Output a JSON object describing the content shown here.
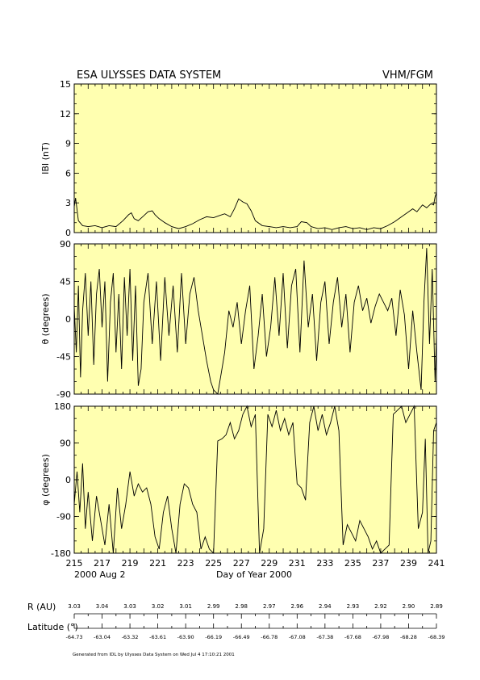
{
  "header": {
    "title": "ESA ULYSSES DATA SYSTEM",
    "instrument": "VHM/FGM"
  },
  "chart_data": {
    "type": "line",
    "x": {
      "label": "Day of Year 2000",
      "range": [
        215,
        241
      ],
      "tick_labels": [
        "215",
        "217",
        "219",
        "221",
        "223",
        "225",
        "227",
        "229",
        "231",
        "233",
        "235",
        "237",
        "239",
        "241"
      ],
      "start_date": "2000 Aug  2"
    },
    "panels": [
      {
        "name": "B",
        "ylabel": "IBI (nT)",
        "ylim": [
          0,
          15
        ],
        "ytick_labels": [
          "0",
          "3",
          "6",
          "9",
          "12",
          "15"
        ],
        "points": [
          [
            215.0,
            2.6
          ],
          [
            215.1,
            3.5
          ],
          [
            215.3,
            1.2
          ],
          [
            215.6,
            0.7
          ],
          [
            216.0,
            0.6
          ],
          [
            216.5,
            0.7
          ],
          [
            217.0,
            0.5
          ],
          [
            217.5,
            0.7
          ],
          [
            218.0,
            0.6
          ],
          [
            218.5,
            1.2
          ],
          [
            218.9,
            1.8
          ],
          [
            219.1,
            2.0
          ],
          [
            219.3,
            1.4
          ],
          [
            219.6,
            1.2
          ],
          [
            220.0,
            1.7
          ],
          [
            220.3,
            2.1
          ],
          [
            220.6,
            2.2
          ],
          [
            220.8,
            1.8
          ],
          [
            221.1,
            1.4
          ],
          [
            221.5,
            1.0
          ],
          [
            222.0,
            0.6
          ],
          [
            222.5,
            0.4
          ],
          [
            223.0,
            0.6
          ],
          [
            223.5,
            0.9
          ],
          [
            224.0,
            1.3
          ],
          [
            224.5,
            1.6
          ],
          [
            225.0,
            1.5
          ],
          [
            225.4,
            1.7
          ],
          [
            225.8,
            1.9
          ],
          [
            226.2,
            1.6
          ],
          [
            226.5,
            2.4
          ],
          [
            226.8,
            3.4
          ],
          [
            227.1,
            3.1
          ],
          [
            227.4,
            2.9
          ],
          [
            227.7,
            2.2
          ],
          [
            228.0,
            1.2
          ],
          [
            228.5,
            0.7
          ],
          [
            229.0,
            0.6
          ],
          [
            229.5,
            0.5
          ],
          [
            230.0,
            0.6
          ],
          [
            230.5,
            0.5
          ],
          [
            231.0,
            0.6
          ],
          [
            231.3,
            1.1
          ],
          [
            231.7,
            1.0
          ],
          [
            232.0,
            0.6
          ],
          [
            232.5,
            0.4
          ],
          [
            233.0,
            0.5
          ],
          [
            233.5,
            0.3
          ],
          [
            234.0,
            0.5
          ],
          [
            234.5,
            0.6
          ],
          [
            235.0,
            0.4
          ],
          [
            235.5,
            0.5
          ],
          [
            236.0,
            0.3
          ],
          [
            236.5,
            0.5
          ],
          [
            237.0,
            0.4
          ],
          [
            237.5,
            0.7
          ],
          [
            238.0,
            1.1
          ],
          [
            238.5,
            1.6
          ],
          [
            239.0,
            2.1
          ],
          [
            239.3,
            2.4
          ],
          [
            239.6,
            2.1
          ],
          [
            240.0,
            2.8
          ],
          [
            240.3,
            2.5
          ],
          [
            240.6,
            2.9
          ],
          [
            240.8,
            2.8
          ],
          [
            240.9,
            3.6
          ],
          [
            241.0,
            4.0
          ]
        ]
      },
      {
        "name": "theta",
        "ylabel": "θ (degrees)",
        "ylim": [
          -90,
          90
        ],
        "ytick_labels": [
          "-90",
          "-45",
          "0",
          "45",
          "90"
        ],
        "points": [
          [
            215.0,
            15
          ],
          [
            215.15,
            -40
          ],
          [
            215.3,
            40
          ],
          [
            215.45,
            -70
          ],
          [
            215.6,
            10
          ],
          [
            215.8,
            55
          ],
          [
            216.0,
            -20
          ],
          [
            216.2,
            45
          ],
          [
            216.4,
            -55
          ],
          [
            216.6,
            30
          ],
          [
            216.8,
            60
          ],
          [
            217.0,
            -10
          ],
          [
            217.2,
            45
          ],
          [
            217.4,
            -75
          ],
          [
            217.6,
            20
          ],
          [
            217.8,
            55
          ],
          [
            218.0,
            -40
          ],
          [
            218.2,
            30
          ],
          [
            218.4,
            -60
          ],
          [
            218.6,
            50
          ],
          [
            218.8,
            -20
          ],
          [
            219.0,
            60
          ],
          [
            219.2,
            -50
          ],
          [
            219.4,
            40
          ],
          [
            219.6,
            -80
          ],
          [
            219.8,
            -60
          ],
          [
            220.0,
            20
          ],
          [
            220.3,
            55
          ],
          [
            220.6,
            -30
          ],
          [
            220.9,
            45
          ],
          [
            221.2,
            -50
          ],
          [
            221.5,
            50
          ],
          [
            221.8,
            -20
          ],
          [
            222.1,
            40
          ],
          [
            222.4,
            -40
          ],
          [
            222.7,
            55
          ],
          [
            223.0,
            -30
          ],
          [
            223.3,
            30
          ],
          [
            223.6,
            50
          ],
          [
            223.9,
            10
          ],
          [
            224.2,
            -20
          ],
          [
            224.5,
            -50
          ],
          [
            224.8,
            -75
          ],
          [
            225.0,
            -85
          ],
          [
            225.3,
            -90
          ],
          [
            225.6,
            -60
          ],
          [
            225.8,
            -40
          ],
          [
            226.1,
            10
          ],
          [
            226.4,
            -10
          ],
          [
            226.7,
            20
          ],
          [
            227.0,
            -30
          ],
          [
            227.3,
            10
          ],
          [
            227.6,
            40
          ],
          [
            227.9,
            -60
          ],
          [
            228.2,
            -20
          ],
          [
            228.5,
            30
          ],
          [
            228.8,
            -45
          ],
          [
            229.1,
            -10
          ],
          [
            229.4,
            50
          ],
          [
            229.7,
            -20
          ],
          [
            230.0,
            55
          ],
          [
            230.3,
            -35
          ],
          [
            230.6,
            40
          ],
          [
            230.9,
            60
          ],
          [
            231.2,
            -40
          ],
          [
            231.5,
            70
          ],
          [
            231.8,
            -10
          ],
          [
            232.1,
            30
          ],
          [
            232.4,
            -50
          ],
          [
            232.7,
            20
          ],
          [
            233.0,
            45
          ],
          [
            233.3,
            -30
          ],
          [
            233.6,
            20
          ],
          [
            233.9,
            50
          ],
          [
            234.2,
            -10
          ],
          [
            234.5,
            30
          ],
          [
            234.8,
            -40
          ],
          [
            235.1,
            20
          ],
          [
            235.4,
            40
          ],
          [
            235.7,
            10
          ],
          [
            236.0,
            25
          ],
          [
            236.3,
            -5
          ],
          [
            236.6,
            15
          ],
          [
            236.9,
            30
          ],
          [
            237.2,
            20
          ],
          [
            237.5,
            10
          ],
          [
            237.8,
            25
          ],
          [
            238.1,
            -20
          ],
          [
            238.4,
            35
          ],
          [
            238.7,
            5
          ],
          [
            239.0,
            -60
          ],
          [
            239.3,
            10
          ],
          [
            239.6,
            -40
          ],
          [
            239.9,
            -85
          ],
          [
            240.1,
            20
          ],
          [
            240.3,
            85
          ],
          [
            240.5,
            -30
          ],
          [
            240.7,
            60
          ],
          [
            240.9,
            -75
          ],
          [
            241.0,
            -20
          ]
        ]
      },
      {
        "name": "phi",
        "ylabel": "φ (degrees)",
        "ylim": [
          -180,
          180
        ],
        "ytick_labels": [
          "-180",
          "-90",
          "0",
          "90",
          "180"
        ],
        "points": [
          [
            215.0,
            -60
          ],
          [
            215.2,
            20
          ],
          [
            215.4,
            -80
          ],
          [
            215.6,
            40
          ],
          [
            215.8,
            -120
          ],
          [
            216.0,
            -30
          ],
          [
            216.3,
            -150
          ],
          [
            216.6,
            -40
          ],
          [
            216.9,
            -100
          ],
          [
            217.2,
            -160
          ],
          [
            217.5,
            -60
          ],
          [
            217.8,
            -180
          ],
          [
            218.1,
            -20
          ],
          [
            218.4,
            -120
          ],
          [
            218.7,
            -60
          ],
          [
            219.0,
            20
          ],
          [
            219.3,
            -40
          ],
          [
            219.6,
            -10
          ],
          [
            219.9,
            -30
          ],
          [
            220.2,
            -20
          ],
          [
            220.5,
            -60
          ],
          [
            220.8,
            -140
          ],
          [
            221.1,
            -170
          ],
          [
            221.4,
            -80
          ],
          [
            221.7,
            -40
          ],
          [
            222.0,
            -120
          ],
          [
            222.3,
            -180
          ],
          [
            222.6,
            -60
          ],
          [
            222.9,
            -10
          ],
          [
            223.2,
            -20
          ],
          [
            223.5,
            -60
          ],
          [
            223.8,
            -80
          ],
          [
            224.1,
            -170
          ],
          [
            224.4,
            -140
          ],
          [
            224.7,
            -170
          ],
          [
            225.0,
            -180
          ],
          [
            225.3,
            95
          ],
          [
            225.6,
            100
          ],
          [
            225.9,
            110
          ],
          [
            226.2,
            140
          ],
          [
            226.5,
            100
          ],
          [
            226.8,
            120
          ],
          [
            227.1,
            160
          ],
          [
            227.4,
            180
          ],
          [
            227.7,
            130
          ],
          [
            228.0,
            160
          ],
          [
            228.3,
            -180
          ],
          [
            228.6,
            -120
          ],
          [
            228.9,
            160
          ],
          [
            229.2,
            130
          ],
          [
            229.5,
            170
          ],
          [
            229.8,
            120
          ],
          [
            230.1,
            150
          ],
          [
            230.4,
            110
          ],
          [
            230.7,
            140
          ],
          [
            231.0,
            -10
          ],
          [
            231.3,
            -20
          ],
          [
            231.6,
            -50
          ],
          [
            231.9,
            140
          ],
          [
            232.2,
            180
          ],
          [
            232.5,
            120
          ],
          [
            232.8,
            160
          ],
          [
            233.1,
            110
          ],
          [
            233.4,
            140
          ],
          [
            233.7,
            180
          ],
          [
            234.0,
            120
          ],
          [
            234.3,
            -160
          ],
          [
            234.6,
            -110
          ],
          [
            234.9,
            -130
          ],
          [
            235.2,
            -150
          ],
          [
            235.5,
            -100
          ],
          [
            235.8,
            -120
          ],
          [
            236.1,
            -140
          ],
          [
            236.4,
            -170
          ],
          [
            236.7,
            -150
          ],
          [
            237.0,
            -180
          ],
          [
            237.3,
            -170
          ],
          [
            237.6,
            -160
          ],
          [
            237.9,
            160
          ],
          [
            238.2,
            170
          ],
          [
            238.5,
            180
          ],
          [
            238.8,
            140
          ],
          [
            239.1,
            160
          ],
          [
            239.4,
            180
          ],
          [
            239.7,
            -120
          ],
          [
            240.0,
            -80
          ],
          [
            240.2,
            100
          ],
          [
            240.4,
            -180
          ],
          [
            240.6,
            -150
          ],
          [
            240.8,
            120
          ],
          [
            241.0,
            140
          ]
        ]
      }
    ]
  },
  "orbit": {
    "r_label": "R (AU)",
    "lat_label": "Latitude (°)",
    "r_values": [
      "3.03",
      "3.04",
      "3.03",
      "3.02",
      "3.01",
      "2.99",
      "2.98",
      "2.97",
      "2.96",
      "2.94",
      "2.93",
      "2.92",
      "2.90",
      "2.89"
    ],
    "lat_values": [
      "-64.73",
      "-63.04",
      "-63.32",
      "-63.61",
      "-63.90",
      "-66.19",
      "-66.49",
      "-66.78",
      "-67.08",
      "-67.38",
      "-67.68",
      "-67.98",
      "-68.28",
      "-68.39"
    ]
  },
  "footer": {
    "generated": "Generated from IDL by Ulysses Data System on Wed Jul  4 17:10:21 2001"
  }
}
